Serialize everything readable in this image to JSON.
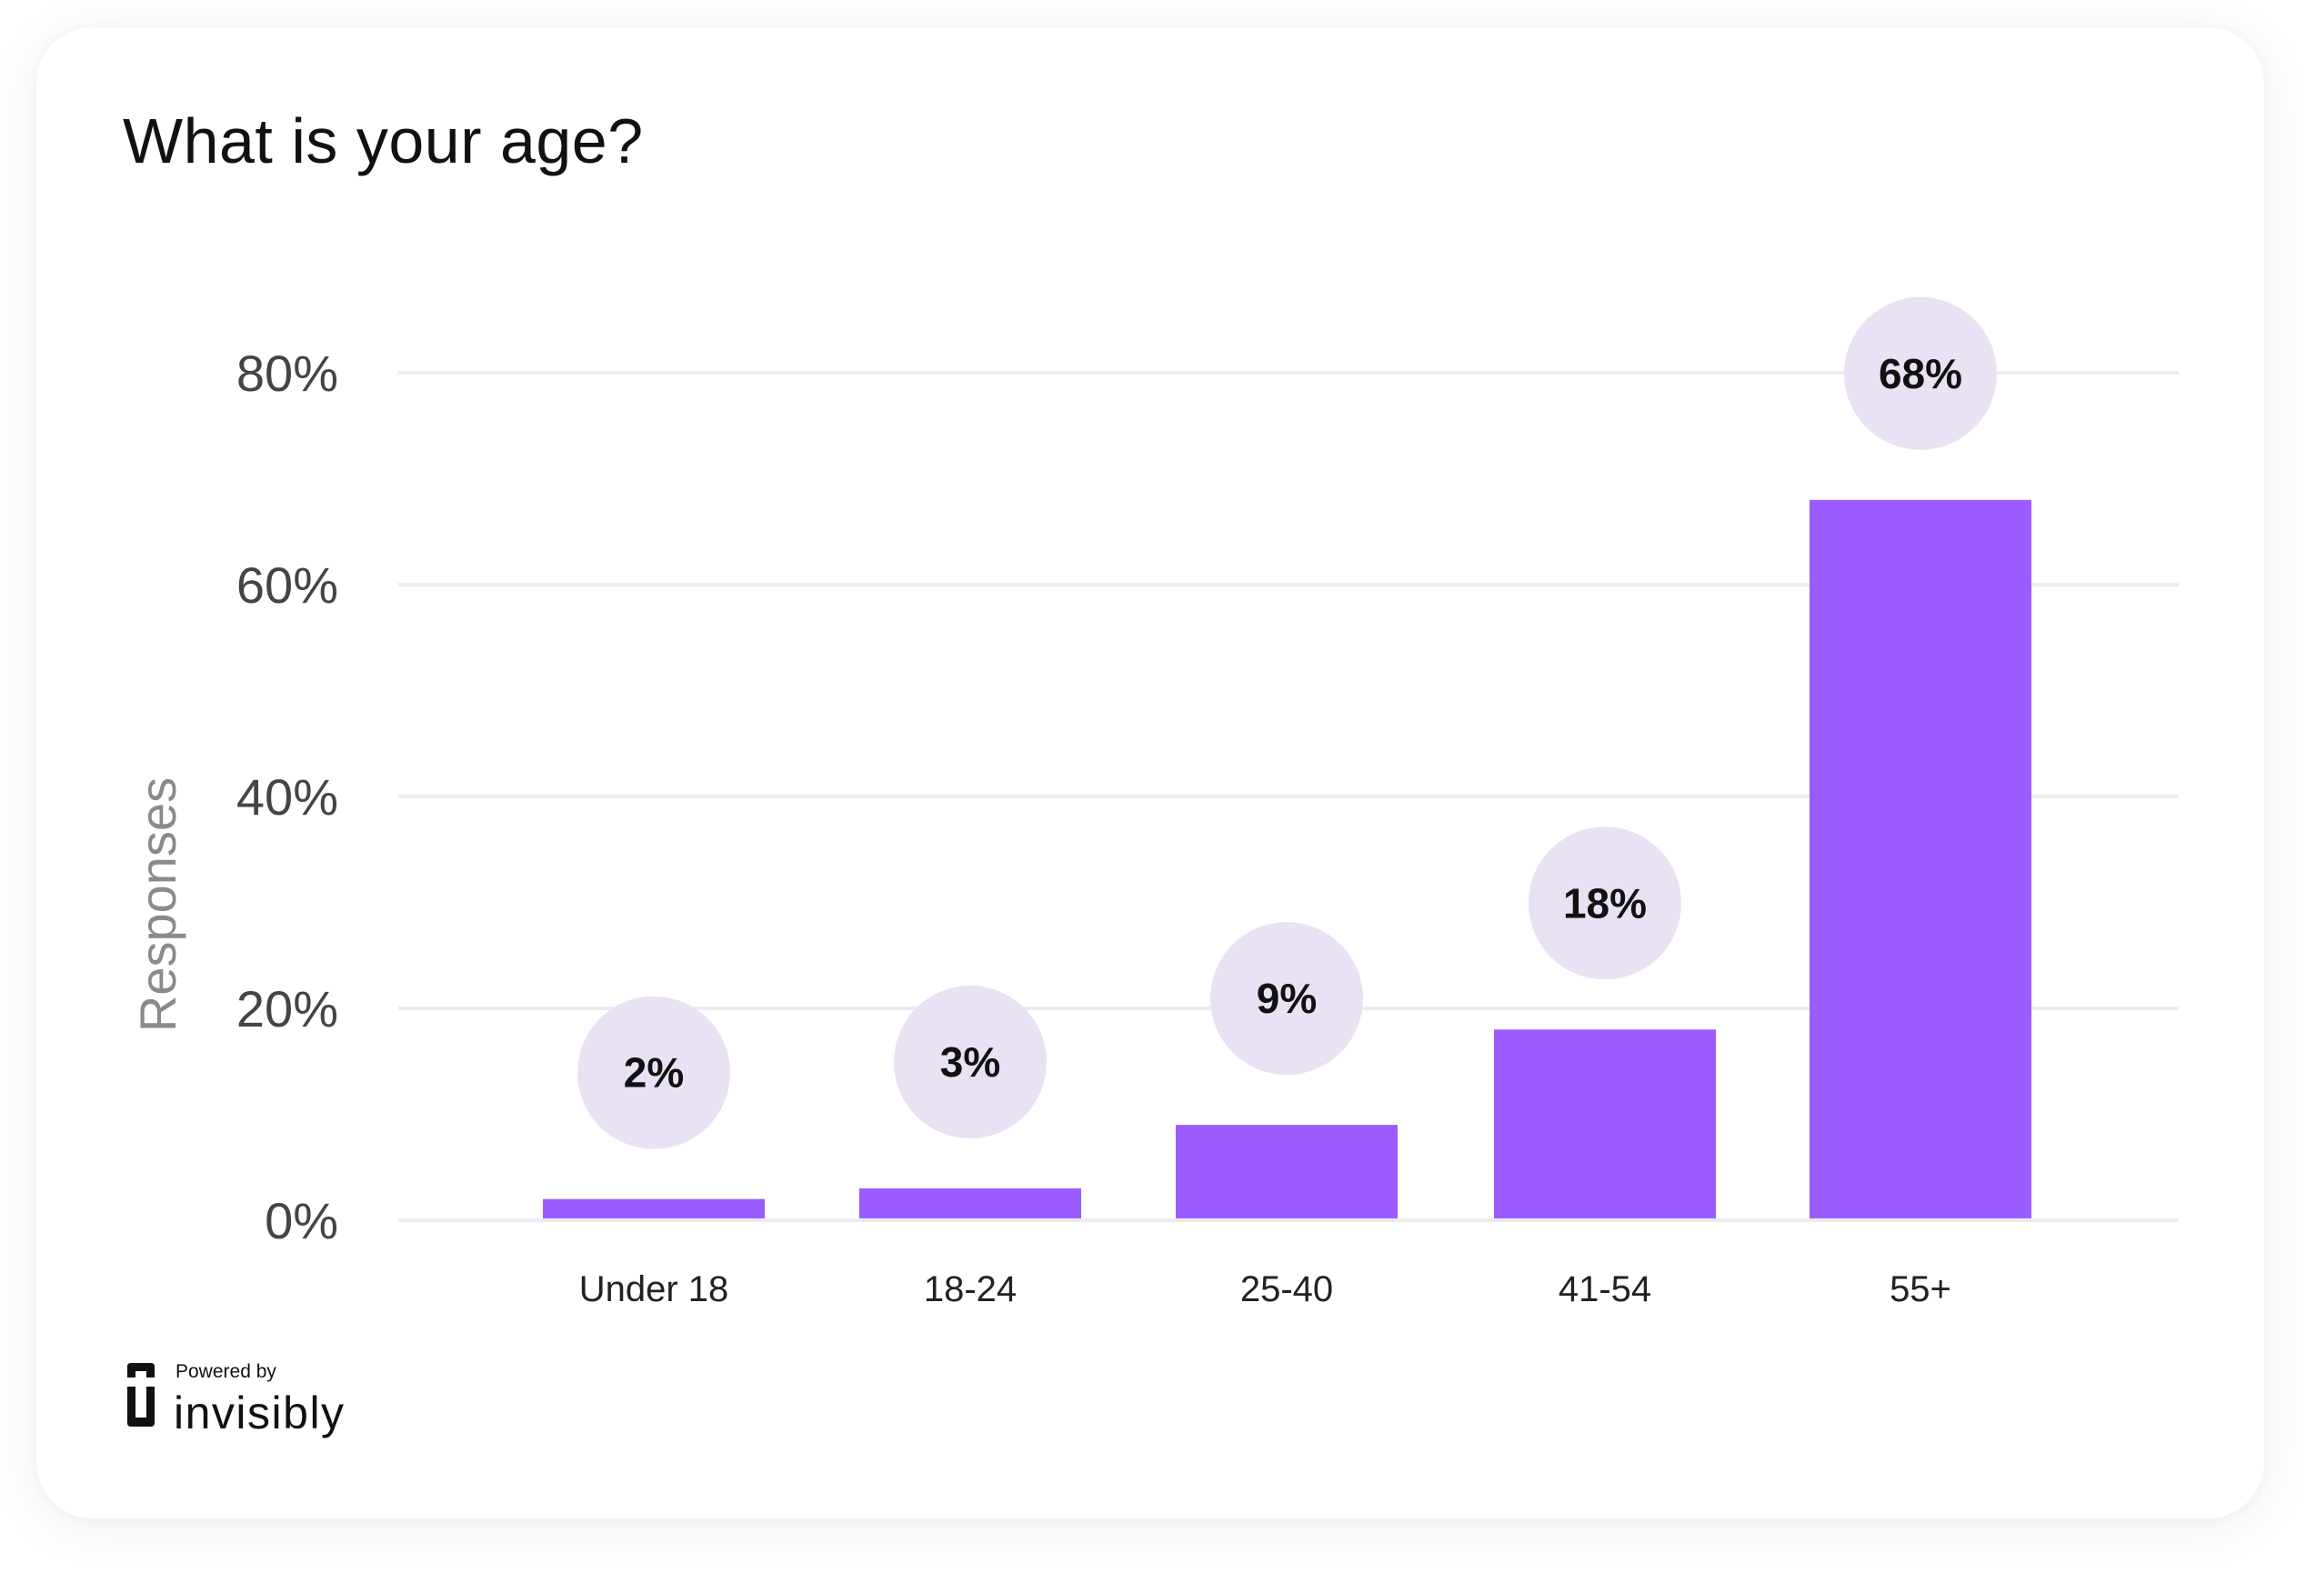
{
  "card": {
    "title": "What is your age?"
  },
  "chart_data": {
    "type": "bar",
    "title": "What is your age?",
    "categories": [
      "Under 18",
      "18-24",
      "25-40",
      "41-54",
      "55+"
    ],
    "values": [
      2,
      3,
      9,
      18,
      68
    ],
    "value_labels": [
      "2%",
      "3%",
      "9%",
      "18%",
      "68%"
    ],
    "xlabel": "",
    "ylabel": "Responses",
    "ylim": [
      0,
      80
    ],
    "yticks": [
      0,
      20,
      40,
      60,
      80
    ],
    "ytick_labels": [
      "0%",
      "20%",
      "40%",
      "60%",
      "80%"
    ],
    "grid": true,
    "legend": "none",
    "colors": {
      "bar": "#9b5cff",
      "label_bubble": "#e9e1f4",
      "gridline": "#ececf0",
      "tick_text": "#444444",
      "axis_label_text": "#8a8a8a"
    }
  },
  "branding": {
    "powered_by": "Powered by",
    "name": "invisibly",
    "icon": "invisibly-logo-icon"
  }
}
